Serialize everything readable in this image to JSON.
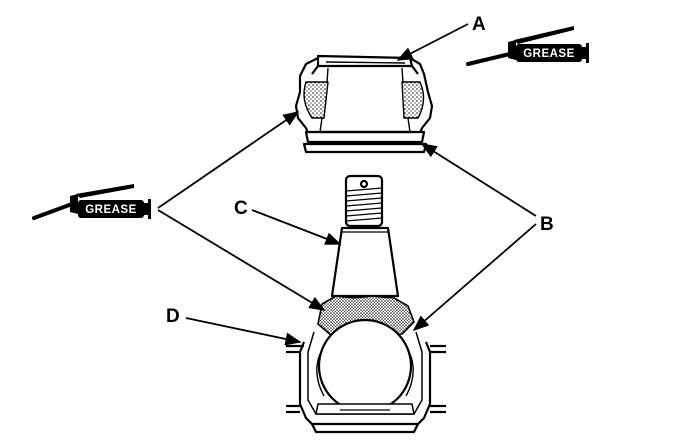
{
  "callouts": {
    "a": "A",
    "b": "B",
    "c": "C",
    "d": "D"
  },
  "grease_tubes": {
    "left_label": "GREASE",
    "right_label": "GREASE"
  },
  "colors": {
    "ink": "#000000",
    "paper": "#ffffff"
  }
}
